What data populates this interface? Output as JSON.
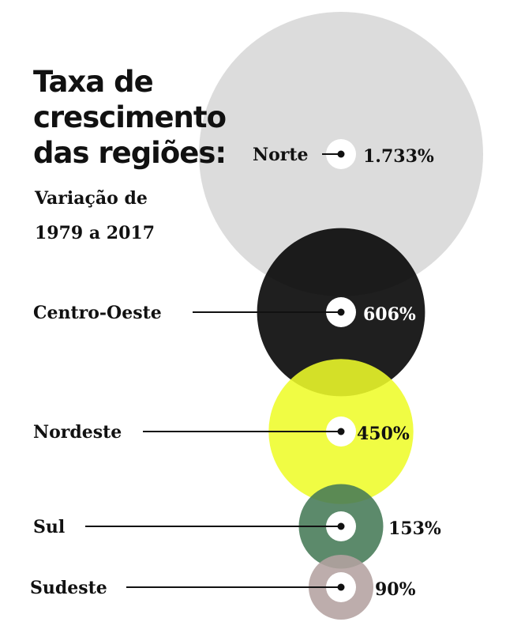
{
  "chart_data": {
    "type": "bubble",
    "title": [
      "Taxa de",
      "crescimento",
      "das regiões:"
    ],
    "subtitle": [
      "Variação de",
      "1979 a 2017"
    ],
    "unit": "%",
    "series": [
      {
        "region": "Norte",
        "value": 1733,
        "value_label": "1.733%",
        "color": "#dcdcdc",
        "value_color": "#111111"
      },
      {
        "region": "Centro-Oeste",
        "value": 606,
        "value_label": "606%",
        "color": "#000000",
        "value_color": "#ffffff"
      },
      {
        "region": "Nordeste",
        "value": 450,
        "value_label": "450%",
        "color": "#eefc2a",
        "value_color": "#111111"
      },
      {
        "region": "Sul",
        "value": 153,
        "value_label": "153%",
        "color": "#457a57",
        "value_color": "#111111"
      },
      {
        "region": "Sudeste",
        "value": 90,
        "value_label": "90%",
        "color": "#b4a2a0",
        "value_color": "#111111"
      }
    ]
  }
}
